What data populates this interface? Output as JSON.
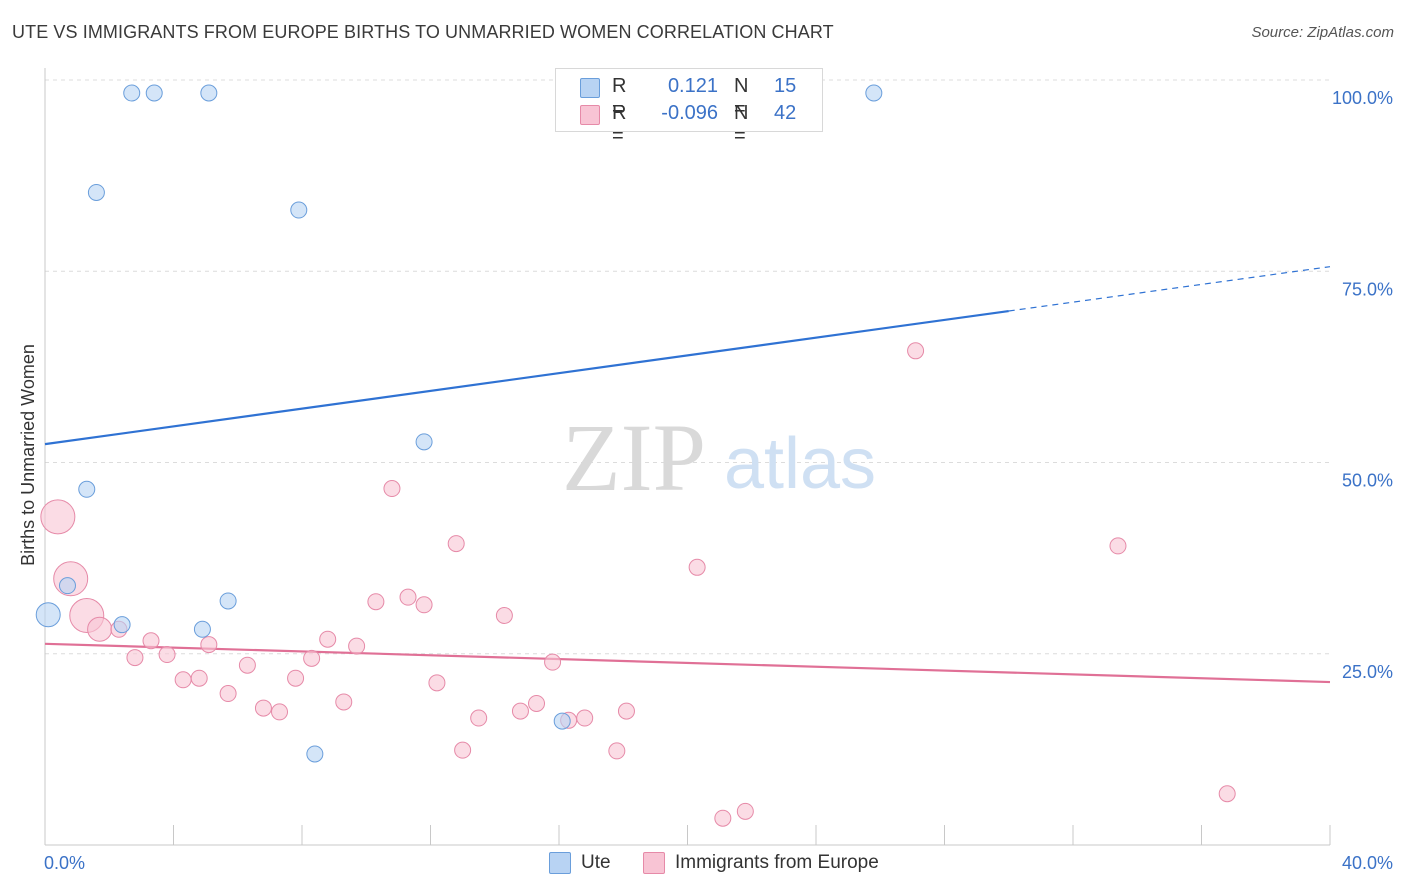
{
  "title": "UTE VS IMMIGRANTS FROM EUROPE BIRTHS TO UNMARRIED WOMEN CORRELATION CHART",
  "source": "Source: ZipAtlas.com",
  "watermark": {
    "zip": "ZIP",
    "atlas": "atlas"
  },
  "legend_top": {
    "rows": [
      {
        "r_label": "R =",
        "r_value": "0.121",
        "n_label": "N =",
        "n_value": "15"
      },
      {
        "r_label": "R =",
        "r_value": "-0.096",
        "n_label": "N =",
        "n_value": "42"
      }
    ]
  },
  "legend_bottom": {
    "ute": "Ute",
    "europe": "Immigrants from Europe"
  },
  "colors": {
    "ute_fill": "#b8d3f3",
    "ute_stroke": "#6a9edb",
    "ute_line": "#2f72d3",
    "europe_fill": "#f8c4d4",
    "europe_stroke": "#e68aa8",
    "europe_line": "#e07096",
    "tick_label": "#3b72c7",
    "grid": "#dcdcdc"
  },
  "chart_data": {
    "type": "scatter",
    "title": "UTE VS IMMIGRANTS FROM EUROPE BIRTHS TO UNMARRIED WOMEN CORRELATION CHART",
    "xlabel": "",
    "ylabel": "Births to Unmarried Women",
    "xlim": [
      0,
      40
    ],
    "ylim": [
      0,
      100
    ],
    "x_tick_labels": [
      {
        "value": 0,
        "label": "0.0%"
      },
      {
        "value": 40,
        "label": "40.0%"
      }
    ],
    "y_tick_labels": [
      {
        "value": 25,
        "label": "25.0%"
      },
      {
        "value": 50,
        "label": "50.0%"
      },
      {
        "value": 75,
        "label": "75.0%"
      },
      {
        "value": 100,
        "label": "100.0%"
      }
    ],
    "grid": true,
    "series": [
      {
        "name": "Ute",
        "r": 0.121,
        "n": 15,
        "points": [
          {
            "x": 2.7,
            "y": 98.3,
            "size": 1
          },
          {
            "x": 3.4,
            "y": 98.3,
            "size": 1
          },
          {
            "x": 5.1,
            "y": 98.3,
            "size": 1
          },
          {
            "x": 25.8,
            "y": 98.3,
            "size": 1
          },
          {
            "x": 1.6,
            "y": 85.3,
            "size": 1
          },
          {
            "x": 7.9,
            "y": 83.0,
            "size": 1
          },
          {
            "x": 11.8,
            "y": 52.7,
            "size": 1
          },
          {
            "x": 1.3,
            "y": 46.5,
            "size": 1
          },
          {
            "x": 0.7,
            "y": 33.9,
            "size": 1
          },
          {
            "x": 5.7,
            "y": 31.9,
            "size": 1
          },
          {
            "x": 0.1,
            "y": 30.1,
            "size": 2
          },
          {
            "x": 2.4,
            "y": 28.8,
            "size": 1
          },
          {
            "x": 4.9,
            "y": 28.2,
            "size": 1
          },
          {
            "x": 16.1,
            "y": 16.2,
            "size": 1
          },
          {
            "x": 8.4,
            "y": 11.9,
            "size": 1
          }
        ],
        "trend": {
          "x0": 0,
          "y0": 52.4,
          "x1": 30.0,
          "y1": 69.8,
          "dashed_to_x": 40,
          "dashed_to_y": 75.6
        }
      },
      {
        "name": "Immigrants from Europe",
        "r": -0.096,
        "n": 42,
        "points": [
          {
            "x": 0.4,
            "y": 42.9,
            "size": 3
          },
          {
            "x": 0.8,
            "y": 34.8,
            "size": 3
          },
          {
            "x": 1.3,
            "y": 30.0,
            "size": 3
          },
          {
            "x": 1.7,
            "y": 28.2,
            "size": 2
          },
          {
            "x": 2.3,
            "y": 28.2,
            "size": 1
          },
          {
            "x": 2.8,
            "y": 24.5,
            "size": 1
          },
          {
            "x": 3.3,
            "y": 26.7,
            "size": 1
          },
          {
            "x": 3.8,
            "y": 24.9,
            "size": 1
          },
          {
            "x": 4.3,
            "y": 21.6,
            "size": 1
          },
          {
            "x": 4.8,
            "y": 21.8,
            "size": 1
          },
          {
            "x": 5.1,
            "y": 26.2,
            "size": 1
          },
          {
            "x": 5.7,
            "y": 19.8,
            "size": 1
          },
          {
            "x": 6.3,
            "y": 23.5,
            "size": 1
          },
          {
            "x": 6.8,
            "y": 17.9,
            "size": 1
          },
          {
            "x": 7.3,
            "y": 17.4,
            "size": 1
          },
          {
            "x": 7.8,
            "y": 21.8,
            "size": 1
          },
          {
            "x": 8.3,
            "y": 24.4,
            "size": 1
          },
          {
            "x": 8.8,
            "y": 26.9,
            "size": 1
          },
          {
            "x": 9.3,
            "y": 18.7,
            "size": 1
          },
          {
            "x": 9.7,
            "y": 26.0,
            "size": 1
          },
          {
            "x": 10.3,
            "y": 31.8,
            "size": 1
          },
          {
            "x": 10.8,
            "y": 46.6,
            "size": 1
          },
          {
            "x": 11.3,
            "y": 32.4,
            "size": 1
          },
          {
            "x": 11.8,
            "y": 31.4,
            "size": 1
          },
          {
            "x": 12.2,
            "y": 21.2,
            "size": 1
          },
          {
            "x": 12.8,
            "y": 39.4,
            "size": 1
          },
          {
            "x": 13.0,
            "y": 12.4,
            "size": 1
          },
          {
            "x": 13.5,
            "y": 16.6,
            "size": 1
          },
          {
            "x": 14.3,
            "y": 30.0,
            "size": 1
          },
          {
            "x": 14.8,
            "y": 17.5,
            "size": 1
          },
          {
            "x": 15.3,
            "y": 18.5,
            "size": 1
          },
          {
            "x": 15.8,
            "y": 23.9,
            "size": 1
          },
          {
            "x": 16.3,
            "y": 16.3,
            "size": 1
          },
          {
            "x": 16.8,
            "y": 16.6,
            "size": 1
          },
          {
            "x": 17.8,
            "y": 12.3,
            "size": 1
          },
          {
            "x": 18.1,
            "y": 17.5,
            "size": 1
          },
          {
            "x": 20.3,
            "y": 36.3,
            "size": 1
          },
          {
            "x": 21.1,
            "y": 3.5,
            "size": 1
          },
          {
            "x": 21.8,
            "y": 4.4,
            "size": 1
          },
          {
            "x": 27.1,
            "y": 64.6,
            "size": 1
          },
          {
            "x": 33.4,
            "y": 39.1,
            "size": 1
          },
          {
            "x": 36.8,
            "y": 6.7,
            "size": 1
          }
        ],
        "trend": {
          "x0": 0,
          "y0": 26.3,
          "x1": 40,
          "y1": 21.3
        }
      }
    ]
  }
}
